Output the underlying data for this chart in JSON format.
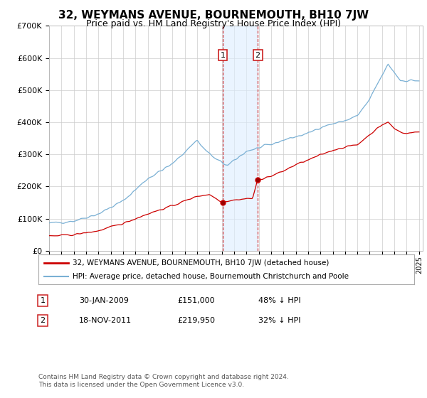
{
  "title": "32, WEYMANS AVENUE, BOURNEMOUTH, BH10 7JW",
  "subtitle": "Price paid vs. HM Land Registry's House Price Index (HPI)",
  "title_fontsize": 11,
  "subtitle_fontsize": 9,
  "ylim": [
    0,
    700000
  ],
  "yticks": [
    0,
    100000,
    200000,
    300000,
    400000,
    500000,
    600000,
    700000
  ],
  "ytick_labels": [
    "£0",
    "£100K",
    "£200K",
    "£300K",
    "£400K",
    "£500K",
    "£600K",
    "£700K"
  ],
  "background_color": "#ffffff",
  "grid_color": "#cccccc",
  "hpi_color": "#7ab0d4",
  "price_color": "#cc0000",
  "shade_color": "#ddeeff",
  "transaction1": {
    "date_num": 2009.08,
    "price": 151000,
    "label": "1",
    "date_str": "30-JAN-2009",
    "pct": "48% ↓ HPI"
  },
  "transaction2": {
    "date_num": 2011.92,
    "price": 219950,
    "label": "2",
    "date_str": "18-NOV-2011",
    "pct": "32% ↓ HPI"
  },
  "legend_line1": "32, WEYMANS AVENUE, BOURNEMOUTH, BH10 7JW (detached house)",
  "legend_line2": "HPI: Average price, detached house, Bournemouth Christchurch and Poole",
  "footer1": "Contains HM Land Registry data © Crown copyright and database right 2024.",
  "footer2": "This data is licensed under the Open Government Licence v3.0."
}
